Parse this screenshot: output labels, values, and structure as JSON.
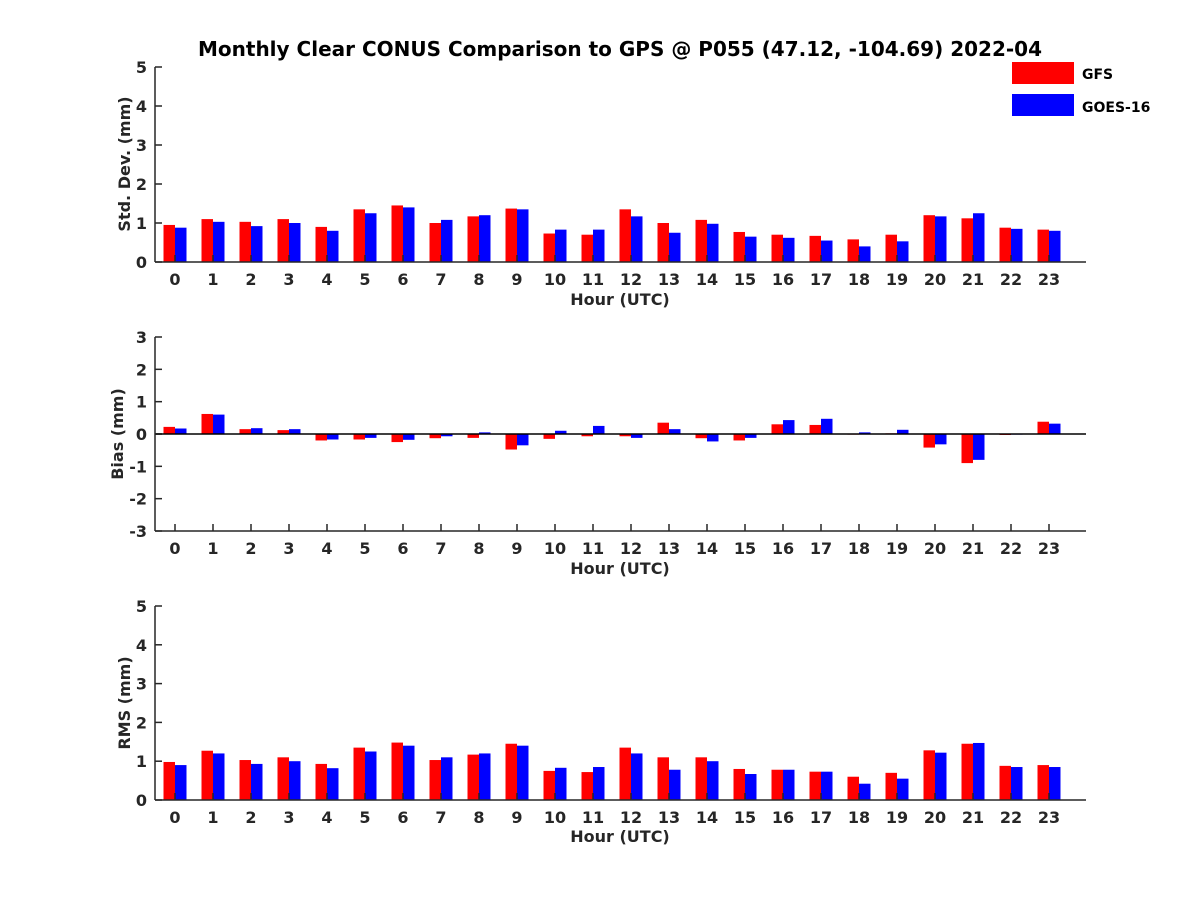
{
  "chart_data": {
    "type": "bar",
    "title": "Monthly Clear CONUS Comparison to GPS @ P055 (47.12, -104.69) 2022-04",
    "legend": {
      "placement": "top-right",
      "entries": [
        {
          "name": "GFS",
          "color": "#ff0000"
        },
        {
          "name": "GOES-16",
          "color": "#0000ff"
        }
      ]
    },
    "categories": [
      "0",
      "1",
      "2",
      "3",
      "4",
      "5",
      "6",
      "7",
      "8",
      "9",
      "10",
      "11",
      "12",
      "13",
      "14",
      "15",
      "16",
      "17",
      "18",
      "19",
      "20",
      "21",
      "22",
      "23"
    ],
    "panels": [
      {
        "ylabel": "Std. Dev. (mm)",
        "xlabel": "Hour (UTC)",
        "ylim": [
          0,
          5
        ],
        "yticks": [
          0,
          1,
          2,
          3,
          4,
          5
        ],
        "series": [
          {
            "name": "GFS",
            "color": "#ff0000",
            "values": [
              0.95,
              1.1,
              1.03,
              1.1,
              0.9,
              1.35,
              1.45,
              1.0,
              1.17,
              1.37,
              0.73,
              0.7,
              1.35,
              1.0,
              1.08,
              0.77,
              0.7,
              0.67,
              0.58,
              0.7,
              1.2,
              1.12,
              0.88,
              0.83
            ]
          },
          {
            "name": "GOES-16",
            "color": "#0000ff",
            "values": [
              0.88,
              1.03,
              0.92,
              1.0,
              0.8,
              1.25,
              1.4,
              1.08,
              1.2,
              1.35,
              0.83,
              0.83,
              1.17,
              0.75,
              0.98,
              0.65,
              0.62,
              0.55,
              0.4,
              0.53,
              1.17,
              1.25,
              0.85,
              0.8
            ]
          }
        ]
      },
      {
        "ylabel": "Bias (mm)",
        "xlabel": "Hour (UTC)",
        "ylim": [
          -3,
          3
        ],
        "yticks": [
          -3,
          -2,
          -1,
          0,
          1,
          2,
          3
        ],
        "series": [
          {
            "name": "GFS",
            "color": "#ff0000",
            "values": [
              0.22,
              0.62,
              0.15,
              0.12,
              -0.2,
              -0.17,
              -0.25,
              -0.13,
              -0.12,
              -0.48,
              -0.15,
              -0.07,
              -0.07,
              0.35,
              -0.13,
              -0.2,
              0.3,
              0.28,
              0.0,
              0.02,
              -0.42,
              -0.9,
              -0.03,
              0.38
            ]
          },
          {
            "name": "GOES-16",
            "color": "#0000ff",
            "values": [
              0.17,
              0.6,
              0.18,
              0.15,
              -0.17,
              -0.12,
              -0.18,
              -0.07,
              0.05,
              -0.35,
              0.1,
              0.25,
              -0.12,
              0.15,
              -0.23,
              -0.12,
              0.43,
              0.47,
              0.05,
              0.13,
              -0.32,
              -0.8,
              0.0,
              0.32
            ]
          }
        ]
      },
      {
        "ylabel": "RMS (mm)",
        "xlabel": "Hour (UTC)",
        "ylim": [
          0,
          5
        ],
        "yticks": [
          0,
          1,
          2,
          3,
          4,
          5
        ],
        "series": [
          {
            "name": "GFS",
            "color": "#ff0000",
            "values": [
              0.98,
              1.27,
              1.03,
              1.1,
              0.93,
              1.35,
              1.48,
              1.03,
              1.17,
              1.45,
              0.75,
              0.72,
              1.35,
              1.1,
              1.1,
              0.8,
              0.78,
              0.73,
              0.6,
              0.7,
              1.28,
              1.45,
              0.88,
              0.9
            ]
          },
          {
            "name": "GOES-16",
            "color": "#0000ff",
            "values": [
              0.9,
              1.2,
              0.93,
              1.0,
              0.82,
              1.25,
              1.4,
              1.1,
              1.2,
              1.4,
              0.83,
              0.85,
              1.2,
              0.78,
              1.0,
              0.67,
              0.78,
              0.73,
              0.42,
              0.55,
              1.22,
              1.47,
              0.85,
              0.85
            ]
          }
        ]
      }
    ]
  }
}
